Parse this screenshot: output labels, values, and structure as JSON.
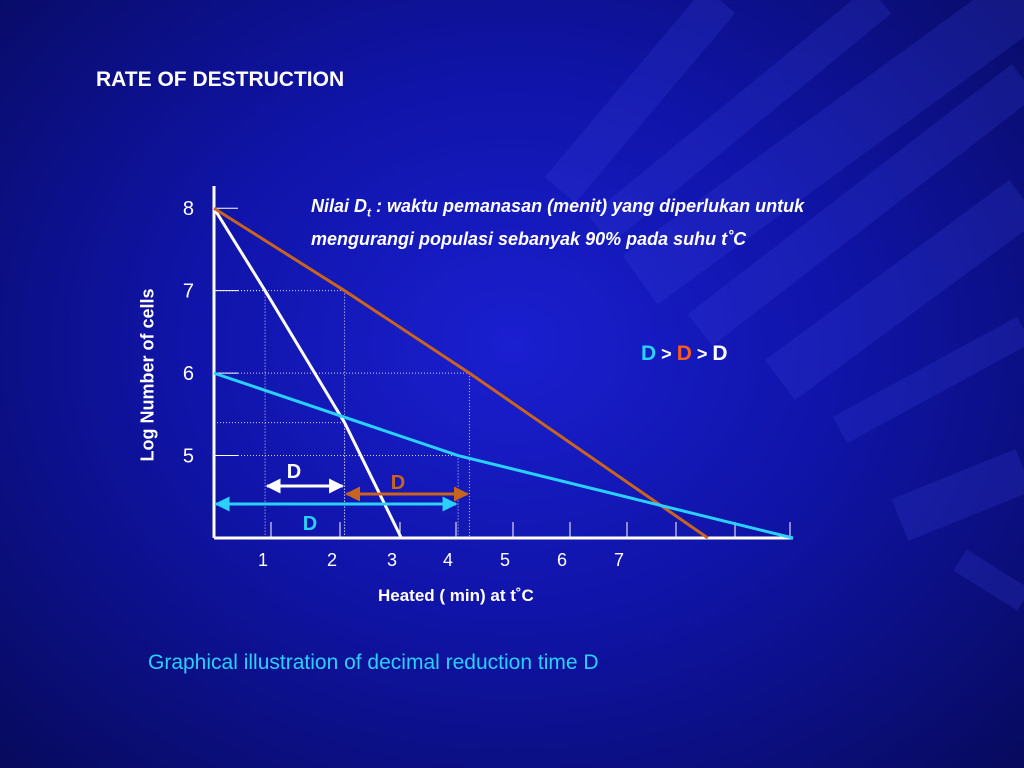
{
  "page": {
    "title": "RATE OF DESTRUCTION",
    "note_prefix": "Nilai D",
    "note_sub": "t",
    "note_line1_rest": " : waktu pemanasan (menit) yang diperlukan untuk",
    "note_line2": "mengurangi populasi sebanyak 90% pada suhu t˚C",
    "relation": {
      "d1": "D",
      "gt1": " > ",
      "d2": "D",
      "gt2": " > ",
      "d3": "D"
    },
    "caption": "Graphical illustration of decimal reduction time D",
    "colors": {
      "white_line": "#ffffff",
      "orange_line": "#c8641e",
      "cyan_line": "#2ad0ff",
      "background": "#1014a8"
    }
  },
  "chart_data": {
    "type": "line",
    "xlabel": "Heated ( min) at  t˚C",
    "ylabel": "Log Number of cells",
    "x_ticks": [
      "1",
      "2",
      "3",
      "4",
      "5",
      "6",
      "7"
    ],
    "y_ticks": [
      "8",
      "7",
      "6",
      "5"
    ],
    "xlim": [
      0,
      10.2
    ],
    "ylim": [
      4,
      8.1
    ],
    "series": [
      {
        "color": "#ffffff",
        "points": [
          [
            0,
            8.0
          ],
          [
            0.9,
            7.0
          ],
          [
            2.3,
            5.4
          ],
          [
            3.3,
            4.0
          ]
        ]
      },
      {
        "color": "#c8641e",
        "points": [
          [
            0,
            8.0
          ],
          [
            2.3,
            7.0
          ],
          [
            4.5,
            6.0
          ],
          [
            8.7,
            4.0
          ]
        ]
      },
      {
        "color": "#2ad0ff",
        "points": [
          [
            0,
            6.0
          ],
          [
            4.3,
            5.0
          ],
          [
            10.2,
            4.0
          ]
        ]
      }
    ],
    "d_intervals": [
      {
        "label": "D",
        "color": "#ffffff",
        "x_start": 0.9,
        "x_end": 2.3
      },
      {
        "label": "D",
        "color": "#c8641e",
        "x_start": 2.3,
        "x_end": 4.5
      },
      {
        "label": "D",
        "color": "#2ad0ff",
        "x_start": 0,
        "x_end": 4.3
      }
    ]
  }
}
